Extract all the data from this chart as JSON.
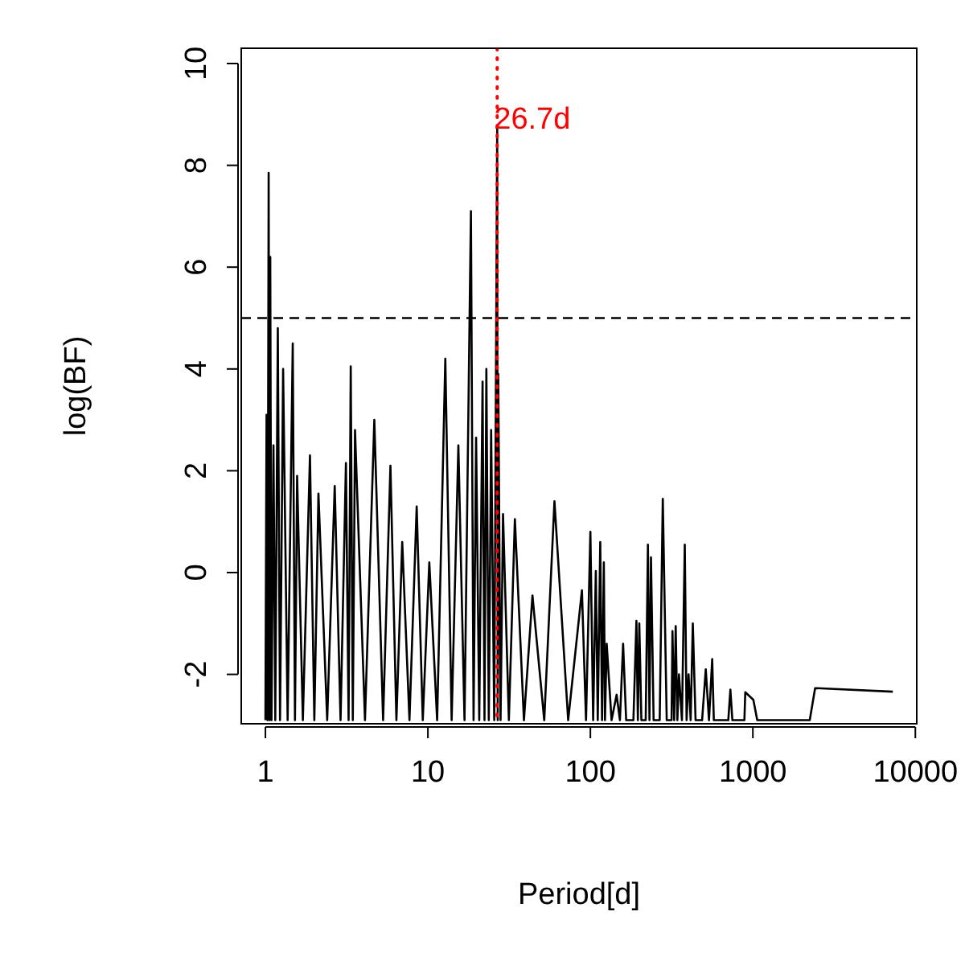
{
  "chart_data": {
    "type": "line",
    "xlabel": "Period[d]",
    "ylabel": "log(BF)",
    "log": "x",
    "xlim": [
      0.71,
      10200
    ],
    "ylim": [
      -2.97,
      10.3
    ],
    "xticks": [
      1,
      10,
      100,
      1000,
      10000
    ],
    "yticks": [
      -2,
      0,
      2,
      4,
      6,
      8,
      10
    ],
    "ref_lines": [
      {
        "axis": "y",
        "value": 5,
        "color": "#000000",
        "line_style": "dashed"
      },
      {
        "axis": "x",
        "value": 26.7,
        "label": "26.7d",
        "color": "#ff0000",
        "line_style": "dotted"
      }
    ],
    "series": [
      {
        "color": "#000000",
        "x": [
          1.0,
          1.016,
          1.03,
          1.047,
          1.06,
          1.071,
          1.09,
          1.121,
          1.15,
          1.192,
          1.23,
          1.285,
          1.37,
          1.473,
          1.52,
          1.567,
          1.7,
          1.88,
          2.0,
          2.12,
          2.4,
          2.67,
          2.9,
          3.13,
          3.25,
          3.35,
          3.45,
          3.56,
          4.1,
          4.68,
          5.3,
          5.88,
          6.4,
          6.95,
          7.7,
          8.53,
          9.3,
          10.2,
          11.4,
          12.8,
          14.0,
          15.4,
          16.8,
          18.4,
          19.1,
          19.8,
          20.7,
          21.7,
          22.3,
          22.9,
          23.7,
          24.5,
          25.6,
          26.7,
          26.9,
          27.1,
          28.0,
          29.0,
          31.5,
          34.3,
          39,
          44.0,
          52,
          60.1,
          73,
          88.7,
          94,
          100,
          104,
          108,
          111,
          115,
          118,
          121,
          123,
          126,
          135,
          145,
          152,
          159,
          166,
          173,
          184,
          192,
          196,
          200,
          206,
          212,
          219,
          226,
          231,
          236,
          245,
          255,
          267,
          279,
          295,
          311,
          316,
          320,
          328,
          335,
          343,
          351,
          366,
          381,
          391,
          402,
          414,
          427,
          444,
          461,
          487,
          513,
          537,
          562,
          575,
          588,
          706,
          727,
          748,
          887,
          898,
          1007,
          1064,
          2239,
          2416,
          7264
        ],
        "values": [
          -2.9,
          3.1,
          -2.9,
          7.85,
          -2.9,
          6.2,
          -2.9,
          2.5,
          -2.9,
          4.8,
          -2.9,
          4.0,
          -2.9,
          4.5,
          -2.9,
          1.9,
          -2.9,
          2.3,
          -2.9,
          1.55,
          -2.9,
          1.7,
          -2.9,
          2.15,
          -2.9,
          4.05,
          -2.9,
          2.8,
          -2.9,
          3.0,
          -2.9,
          2.1,
          -2.9,
          0.6,
          -2.9,
          1.3,
          -2.9,
          0.2,
          -2.9,
          4.2,
          -2.9,
          2.5,
          -2.9,
          7.1,
          -2.9,
          2.65,
          -2.9,
          3.75,
          -2.9,
          4.0,
          -2.9,
          2.8,
          -2.9,
          8.75,
          -2.9,
          3.9,
          -2.9,
          1.15,
          -2.9,
          1.05,
          -2.9,
          -0.45,
          -2.9,
          1.4,
          -2.9,
          -0.35,
          -2.9,
          0.8,
          -2.9,
          0.03,
          -2.9,
          0.6,
          -2.9,
          0.2,
          -2.9,
          -1.4,
          -2.9,
          -2.4,
          -2.9,
          -1.4,
          -2.9,
          -2.9,
          -2.9,
          -0.95,
          -2.9,
          -1.0,
          -2.9,
          -2.9,
          -2.9,
          0.55,
          -2.9,
          0.3,
          -2.9,
          -2.9,
          -2.9,
          1.45,
          -2.9,
          -2.9,
          -2.9,
          -1.15,
          -2.9,
          -1.05,
          -2.9,
          -2.0,
          -2.9,
          0.55,
          -2.9,
          -2.0,
          -2.9,
          -1.0,
          -2.9,
          -2.9,
          -2.9,
          -1.9,
          -2.9,
          -1.7,
          -2.9,
          -2.9,
          -2.9,
          -2.3,
          -2.9,
          -2.9,
          -2.35,
          -2.5,
          -2.9,
          -2.9,
          -2.27,
          -2.34
        ]
      }
    ]
  }
}
